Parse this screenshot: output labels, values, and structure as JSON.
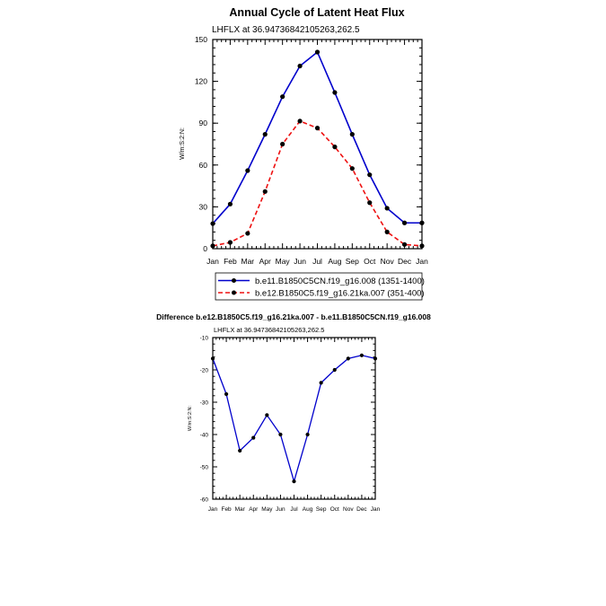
{
  "chart_data": [
    {
      "type": "line",
      "title": "Annual Cycle of Latent Heat Flux",
      "subtitle": "LHFLX at 36.94736842105263,262.5",
      "xlabel": "",
      "ylabel": "W/m:S:2:N:",
      "categories": [
        "Jan",
        "Feb",
        "Mar",
        "Apr",
        "May",
        "Jun",
        "Jul",
        "Aug",
        "Sep",
        "Oct",
        "Nov",
        "Dec",
        "Jan"
      ],
      "ylim": [
        0,
        150
      ],
      "yticks": [
        0,
        30,
        60,
        90,
        120,
        150
      ],
      "grid": false,
      "legend_position": "bottom",
      "series": [
        {
          "name": "b.e11.B1850C5CN.f19_g16.008 (1351-1400)",
          "color": "#0000cc",
          "dash": "solid",
          "values": [
            18,
            32,
            56,
            82,
            109,
            131,
            141,
            112,
            82,
            53,
            29,
            18.5,
            18.5
          ]
        },
        {
          "name": "b.e12.B1850C5.f19_g16.21ka.007 (351-400)",
          "color": "#ee1111",
          "dash": "dashed",
          "values": [
            2,
            4.5,
            11,
            41,
            75,
            91.5,
            86.5,
            73,
            57.5,
            33,
            12,
            3,
            2
          ]
        }
      ]
    },
    {
      "type": "line",
      "title": "Difference b.e12.B1850C5.f19_g16.21ka.007 - b.e11.B1850C5CN.f19_g16.008",
      "subtitle": "LHFLX at 36.94736842105263,262.5",
      "xlabel": "",
      "ylabel": "W/m:S:2:N:",
      "categories": [
        "Jan",
        "Feb",
        "Mar",
        "Apr",
        "May",
        "Jun",
        "Jul",
        "Aug",
        "Sep",
        "Oct",
        "Nov",
        "Dec",
        "Jan"
      ],
      "ylim": [
        -60,
        -10
      ],
      "yticks": [
        -60,
        -50,
        -40,
        -30,
        -20,
        -10
      ],
      "grid": false,
      "series": [
        {
          "name": "",
          "color": "#0000cc",
          "dash": "solid",
          "values": [
            -16.5,
            -27.5,
            -45,
            -41,
            -34,
            -40,
            -54.5,
            -40,
            -24,
            -20,
            -16.5,
            -15.5,
            -16.5
          ]
        }
      ]
    }
  ]
}
